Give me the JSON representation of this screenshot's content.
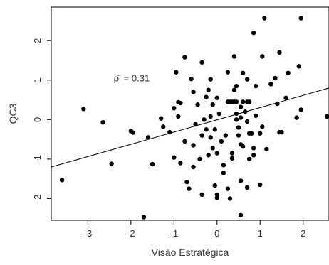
{
  "chart_data": {
    "type": "scatter",
    "title": "",
    "xlabel": "Visão Estratégica",
    "ylabel": "QC3",
    "xlim": [
      -3.85,
      2.6
    ],
    "ylim": [
      -2.55,
      2.85
    ],
    "xticks": [
      -3,
      -2,
      -1,
      0,
      1,
      2
    ],
    "yticks": [
      -2,
      -1,
      0,
      1,
      2
    ],
    "xtick_labels": [
      "-3",
      "-2",
      "-1",
      "0",
      "1",
      "2"
    ],
    "ytick_labels": [
      "-2",
      "-1",
      "0",
      "1",
      "2"
    ],
    "annotation": {
      "symbol": "ρ̂",
      "text": "= 0.31",
      "x": -2.4,
      "y": 0.97
    },
    "regression_line": {
      "x": [
        -3.85,
        2.6
      ],
      "y": [
        -1.2,
        0.8
      ]
    },
    "grid": false,
    "legend": "none",
    "marker_color": "#000000",
    "line_color": "#000000",
    "points": [
      [
        -3.6,
        -1.53
      ],
      [
        -3.1,
        0.27
      ],
      [
        -2.65,
        -0.07
      ],
      [
        -2.45,
        -1.12
      ],
      [
        -2.0,
        -0.29
      ],
      [
        -1.95,
        -0.33
      ],
      [
        -1.7,
        -2.47
      ],
      [
        -1.6,
        -0.45
      ],
      [
        -1.5,
        -1.13
      ],
      [
        -1.3,
        0.03
      ],
      [
        -1.25,
        -0.18
      ],
      [
        -1.1,
        -0.32
      ],
      [
        -1.0,
        -0.96
      ],
      [
        -1.0,
        0.29
      ],
      [
        -0.95,
        1.2
      ],
      [
        -0.9,
        0.08
      ],
      [
        -0.9,
        0.44
      ],
      [
        -0.85,
        0.42
      ],
      [
        -0.85,
        -1.1
      ],
      [
        -0.75,
        -0.55
      ],
      [
        -0.75,
        1.58
      ],
      [
        -0.7,
        -1.58
      ],
      [
        -0.65,
        -1.75
      ],
      [
        -0.6,
        1.03
      ],
      [
        -0.55,
        0.7
      ],
      [
        -0.55,
        -0.65
      ],
      [
        -0.55,
        -1.2
      ],
      [
        -0.5,
        -0.12
      ],
      [
        -0.45,
        0.38
      ],
      [
        -0.4,
        -1.0
      ],
      [
        -0.35,
        1.45
      ],
      [
        -0.35,
        -0.4
      ],
      [
        -0.35,
        -1.9
      ],
      [
        -0.3,
        0.0
      ],
      [
        -0.25,
        -0.25
      ],
      [
        -0.25,
        0.57
      ],
      [
        -0.2,
        -0.9
      ],
      [
        -0.2,
        0.75
      ],
      [
        -0.15,
        1.02
      ],
      [
        -0.15,
        0.08
      ],
      [
        -0.15,
        -0.45
      ],
      [
        -0.1,
        0.38
      ],
      [
        -0.1,
        -0.72
      ],
      [
        -0.05,
        -1.67
      ],
      [
        -0.05,
        -0.25
      ],
      [
        0.0,
        0.55
      ],
      [
        0.0,
        -1.98
      ],
      [
        0.0,
        -1.9
      ],
      [
        0.0,
        -0.85
      ],
      [
        0.05,
        0.15
      ],
      [
        0.1,
        -0.55
      ],
      [
        0.15,
        -1.15
      ],
      [
        0.15,
        -1.35
      ],
      [
        0.2,
        -0.4
      ],
      [
        0.25,
        1.2
      ],
      [
        0.25,
        0.45
      ],
      [
        0.25,
        -1.75
      ],
      [
        0.3,
        -2.0
      ],
      [
        0.3,
        0.45
      ],
      [
        0.35,
        0.45
      ],
      [
        0.35,
        -0.85
      ],
      [
        0.35,
        -0.98
      ],
      [
        0.4,
        1.6
      ],
      [
        0.4,
        0.75
      ],
      [
        0.4,
        0.45
      ],
      [
        0.45,
        0.85
      ],
      [
        0.45,
        0.45
      ],
      [
        0.45,
        0.15
      ],
      [
        0.45,
        0.0
      ],
      [
        0.5,
        -0.2
      ],
      [
        0.5,
        -0.4
      ],
      [
        0.55,
        0.32
      ],
      [
        0.55,
        0.05
      ],
      [
        0.55,
        -0.63
      ],
      [
        0.55,
        -1.55
      ],
      [
        0.55,
        -2.42
      ],
      [
        0.6,
        1.18
      ],
      [
        0.6,
        0.45
      ],
      [
        0.6,
        -0.68
      ],
      [
        0.65,
        0.2
      ],
      [
        0.7,
        1.02
      ],
      [
        0.7,
        0.45
      ],
      [
        0.7,
        -0.05
      ],
      [
        0.7,
        -1.72
      ],
      [
        0.75,
        0.45
      ],
      [
        0.75,
        -0.35
      ],
      [
        0.75,
        -1.0
      ],
      [
        0.8,
        -0.35
      ],
      [
        0.85,
        2.2
      ],
      [
        0.85,
        -0.72
      ],
      [
        0.85,
        -0.9
      ],
      [
        0.9,
        0.85
      ],
      [
        0.9,
        0.1
      ],
      [
        1.0,
        -0.35
      ],
      [
        1.0,
        -1.65
      ],
      [
        1.05,
        1.6
      ],
      [
        1.05,
        -0.18
      ],
      [
        1.1,
        2.57
      ],
      [
        1.15,
        -0.75
      ],
      [
        1.25,
        0.9
      ],
      [
        1.35,
        1.05
      ],
      [
        1.4,
        0.4
      ],
      [
        1.45,
        1.7
      ],
      [
        1.45,
        -0.32
      ],
      [
        1.5,
        -0.32
      ],
      [
        1.6,
        0.55
      ],
      [
        1.65,
        1.18
      ],
      [
        1.85,
        0.05
      ],
      [
        1.9,
        1.35
      ],
      [
        1.95,
        2.57
      ],
      [
        1.95,
        0.25
      ],
      [
        2.55,
        0.08
      ]
    ]
  }
}
